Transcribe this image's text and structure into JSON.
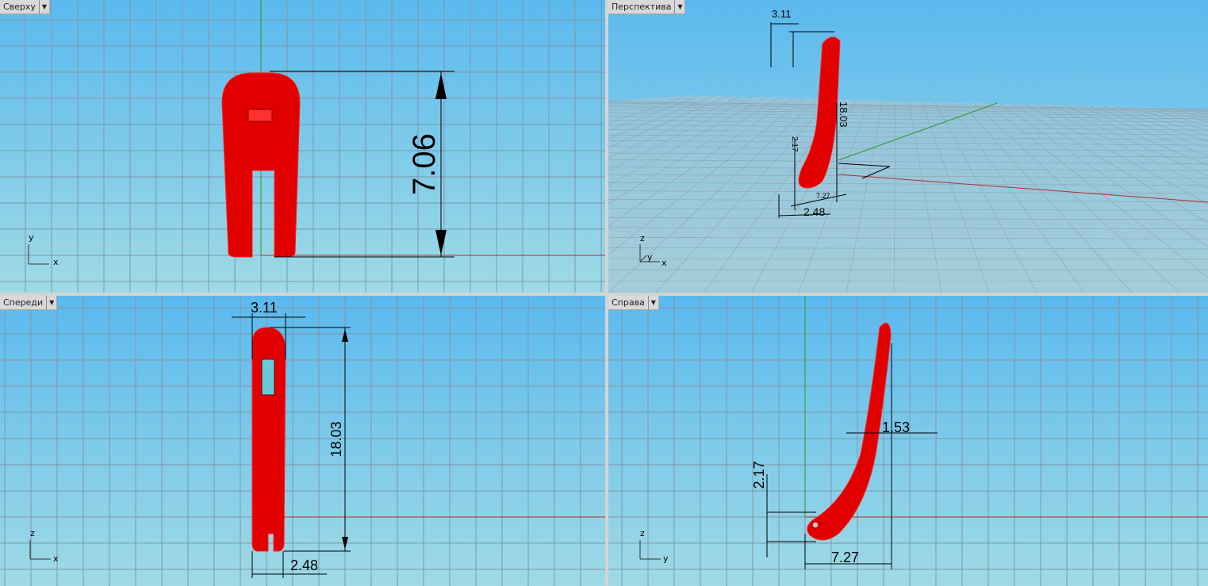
{
  "viewports": {
    "top": {
      "label": "Сверху",
      "dimension": "7.06",
      "axes": [
        "y",
        "x"
      ]
    },
    "perspective": {
      "label": "Перспектива",
      "dimensions": [
        "3.11",
        "18.03",
        "2.17",
        "7.27",
        "2.48"
      ],
      "axes": [
        "z",
        "y",
        "x"
      ]
    },
    "front": {
      "label": "Спереди",
      "dimensions": [
        "3.11",
        "18.03",
        "2.48"
      ],
      "axes": [
        "z",
        "x"
      ]
    },
    "right": {
      "label": "Справа",
      "dimensions": [
        "1.53",
        "2.17",
        "7.27"
      ],
      "axes": [
        "z",
        "y"
      ]
    }
  },
  "colors": {
    "object": "#ff0000",
    "x_axis": "#b03030",
    "y_axis": "#2a9a2a",
    "grid": "#8a9aa6"
  }
}
